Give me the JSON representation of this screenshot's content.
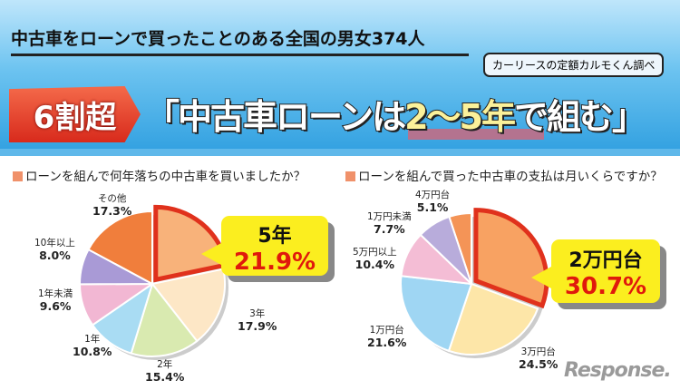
{
  "header": {
    "subtitle": "中古車をローンで買ったことのある全国の男女374人",
    "source": "カーリースの定額カルモくん調べ",
    "tag": "6割超",
    "title_a": "「中古車ローンは",
    "title_hl": "2〜5年",
    "title_b": "で組む」"
  },
  "logo": "Response.",
  "chart_data": [
    {
      "type": "pie",
      "title": "ローンを組んで何年落ちの中古車を買いましたか？",
      "categories": [
        "5年",
        "3年",
        "2年",
        "1年",
        "1年未満",
        "10年以上",
        "その他"
      ],
      "values": [
        21.9,
        17.9,
        15.4,
        10.8,
        9.6,
        8.0,
        17.3
      ],
      "labels": [
        "21.9%",
        "17.9%",
        "15.4%",
        "10.8%",
        "9.6%",
        "8.0%",
        "17.3%"
      ],
      "colors": [
        "#f8b27a",
        "#fde7c6",
        "#d9eab0",
        "#a9dcf3",
        "#f2b7d3",
        "#a99ad6",
        "#f07e3c"
      ],
      "highlight": {
        "label": "5年",
        "value": "21.9%"
      }
    },
    {
      "type": "pie",
      "title": "ローンを組んで買った中古車の支払は月いくらですか？",
      "categories": [
        "2万円台",
        "3万円台",
        "1万円台",
        "5万円以上",
        "1万円未満",
        "4万円台"
      ],
      "values": [
        30.7,
        24.5,
        21.6,
        10.4,
        7.7,
        5.1
      ],
      "labels": [
        "30.7%",
        "24.5%",
        "21.6%",
        "10.4%",
        "7.7%",
        "5.1%"
      ],
      "colors": [
        "#f8a262",
        "#fde6a8",
        "#9fd6f3",
        "#f4bdd5",
        "#b8acdb",
        "#f49457"
      ],
      "highlight": {
        "label": "2万円台",
        "value": "30.7%"
      }
    }
  ]
}
